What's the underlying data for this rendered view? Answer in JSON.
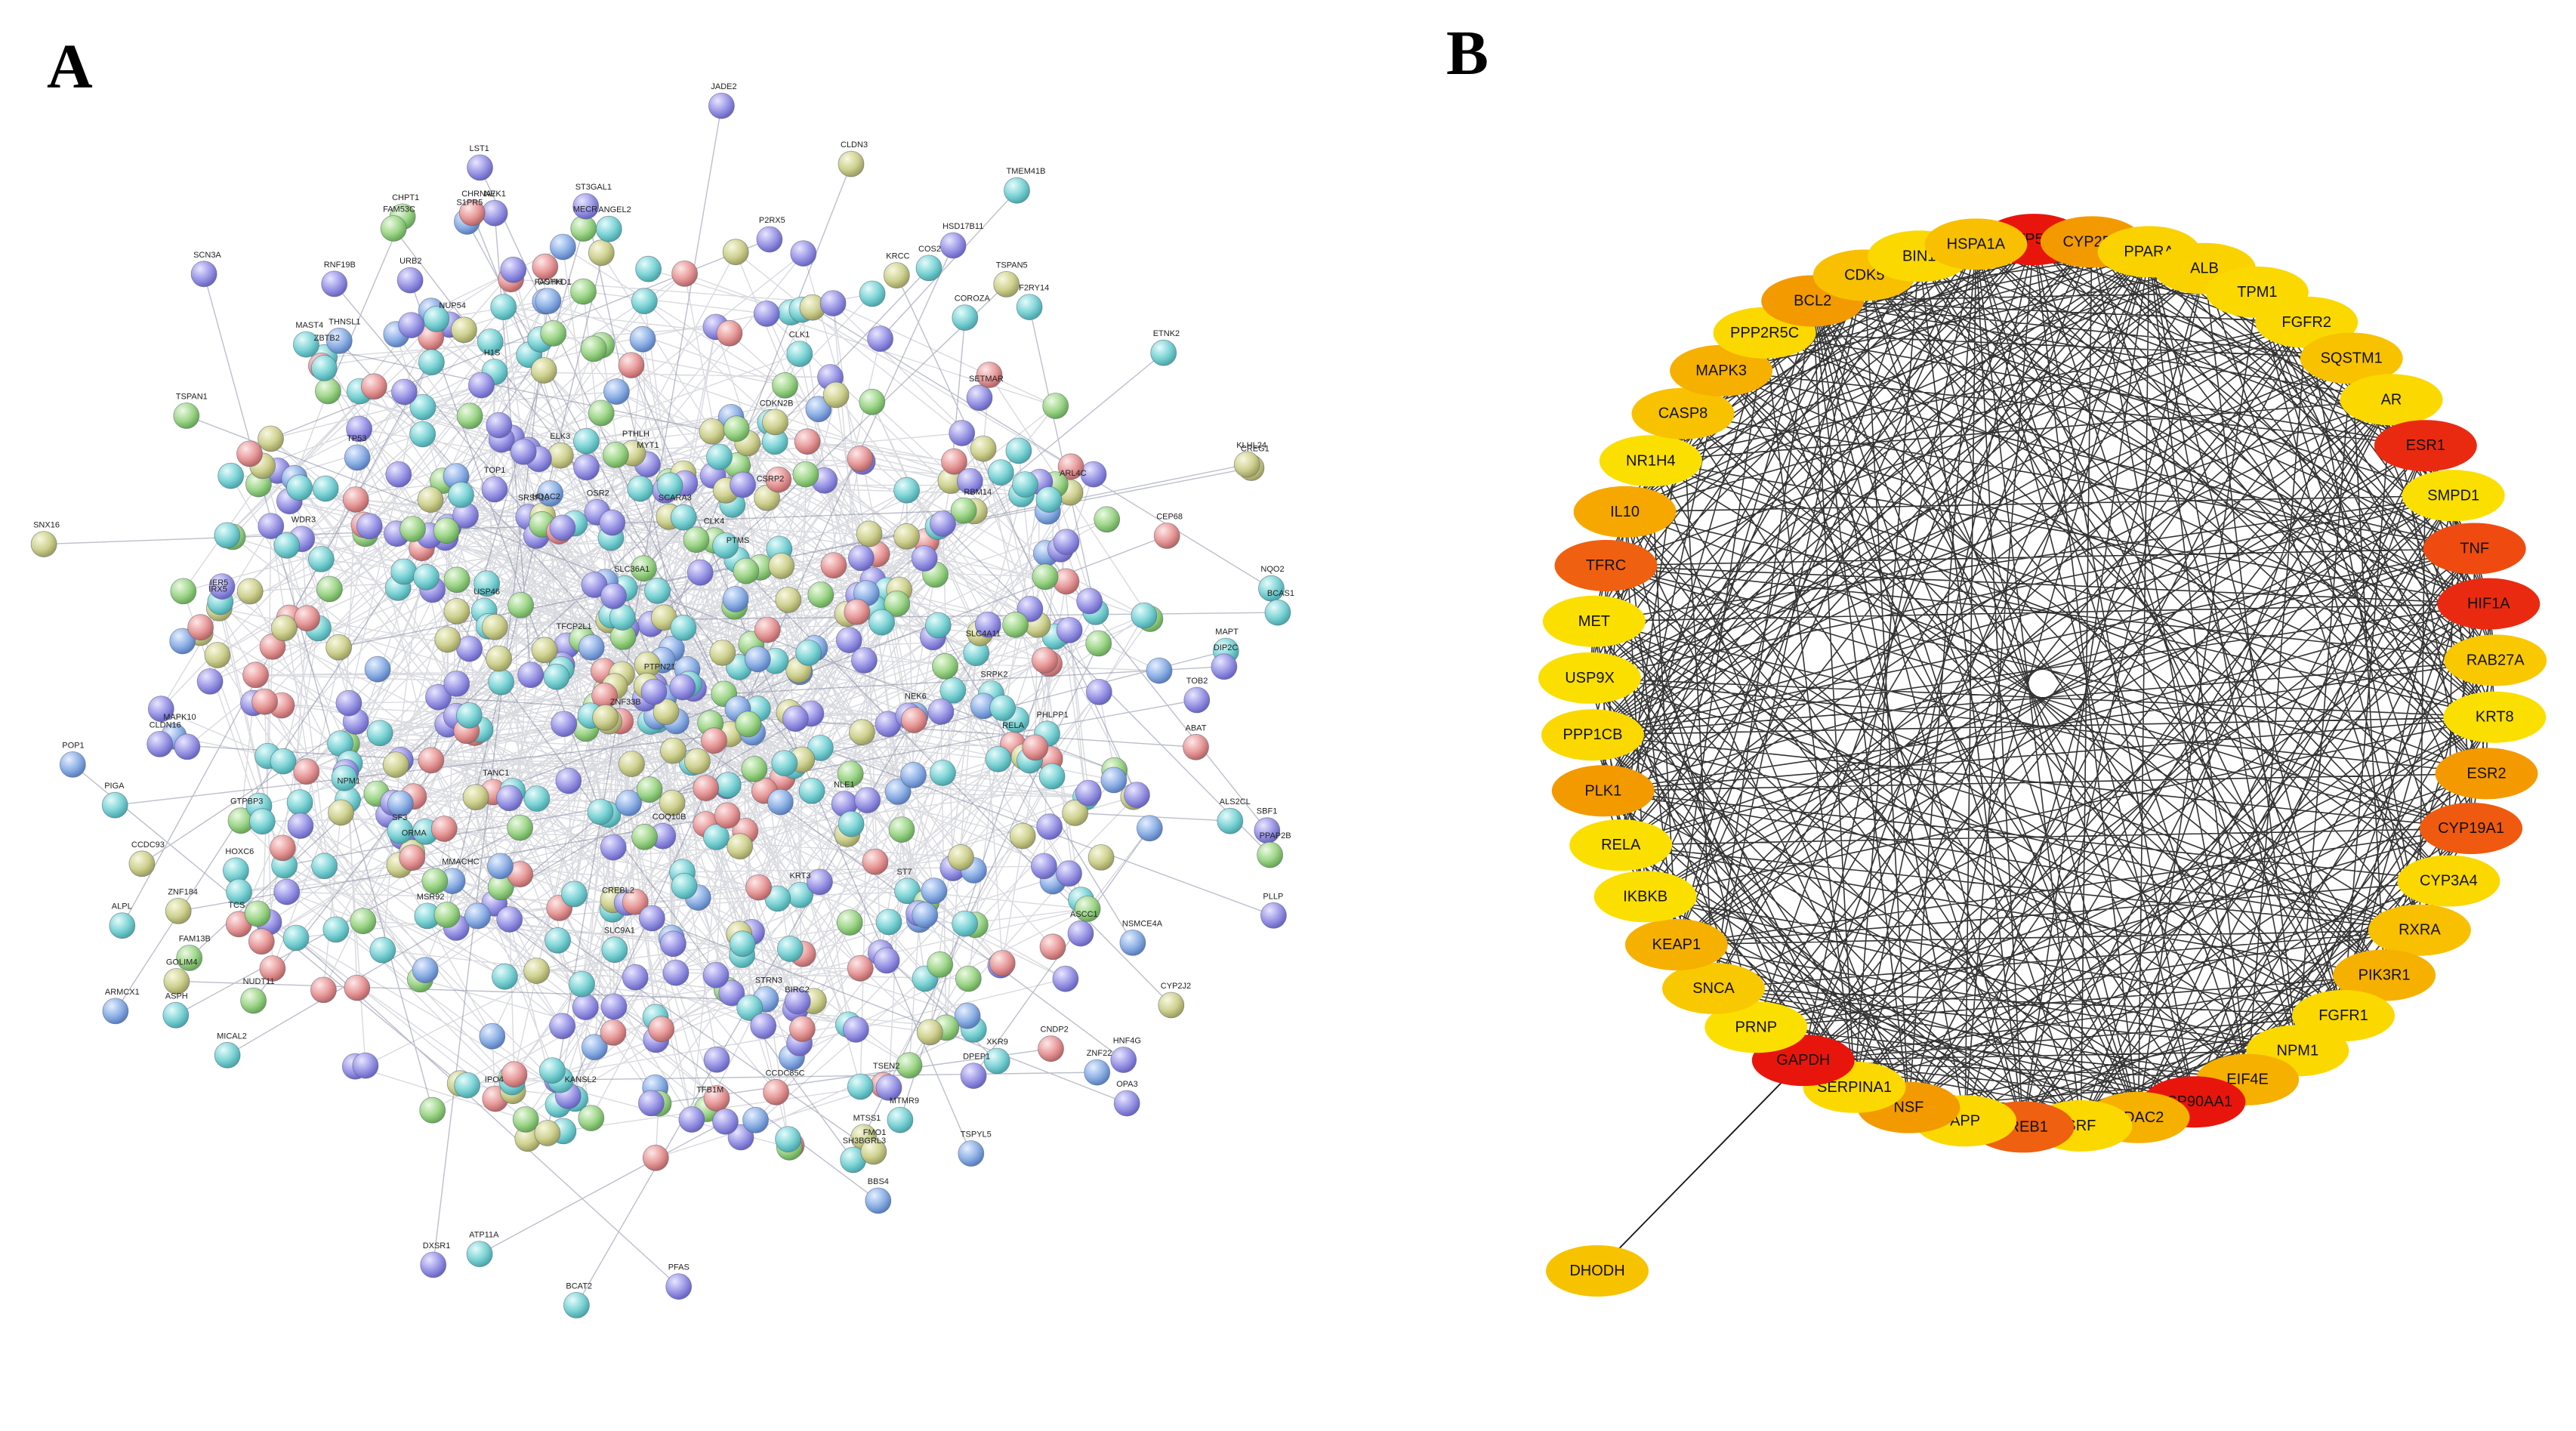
{
  "panels": {
    "a": {
      "label": "A"
    },
    "b": {
      "label": "B"
    }
  },
  "panel_a": {
    "visible_gene_labels": [
      "MTMR9",
      "SBF1",
      "COS2",
      "ETNK2",
      "PPAP2B",
      "DPEP1",
      "THNSL1",
      "RNF19B",
      "PLLP",
      "ALS2CL",
      "MTSS1",
      "CREG1",
      "CHPT1",
      "GOLIM4",
      "ALPL",
      "ABAT",
      "PIGA",
      "CNDP2",
      "MICAL2",
      "BBS4",
      "MAST4",
      "COROZA",
      "TMEM41B",
      "PFAS",
      "ATP11A",
      "XKR9",
      "JADE2",
      "SNX16",
      "HSD17B11",
      "SH3BGRL3",
      "KLHL24",
      "MECR",
      "MAPT",
      "BCAT2",
      "NQO2",
      "BCAS1",
      "NEK1",
      "DXSR1",
      "ZNF22",
      "TSPYL5",
      "CCDC93",
      "URB2",
      "S1PR5",
      "TSPAN1",
      "CYP2J2",
      "ASPH",
      "NUDT11",
      "FAM13B",
      "SCN3A",
      "FMO1",
      "FAM53C",
      "DIP2C",
      "OPA3",
      "NSMCE4A",
      "CEP68",
      "ARMCX1",
      "ANGEL2",
      "KRCC",
      "HNF4G",
      "CHRNA7",
      "ZNF184",
      "TOB2",
      "CLDN3",
      "F2RY14",
      "CLDN16",
      "ST3GAL1",
      "P2RX5",
      "LST1",
      "TSPAN5",
      "POP1",
      "SRSF10",
      "ZBTB2",
      "H1S",
      "TSEN2",
      "FASTKD1",
      "MYT1",
      "CLK4",
      "USP46",
      "CCDC85C",
      "SETMAR",
      "ST7",
      "PTHLH",
      "SLC9A1",
      "ARL4C",
      "SF3",
      "PTMS",
      "KRT3",
      "MSR92",
      "SLC4A11",
      "SCARA3",
      "HOXC6",
      "CSRP2",
      "IRX5",
      "SLC36A1",
      "TFCP2L1",
      "ELK3",
      "OSR2",
      "MMACHC",
      "TCS",
      "ZNF33B",
      "COQ10B",
      "PTPN21",
      "CREBL2",
      "TANC1",
      "CDKN2B",
      "IER5",
      "TP53",
      "RELA",
      "NPM1",
      "HDAC2",
      "MAPK10",
      "STRN3",
      "RBM14",
      "PHLPP1",
      "TOP1",
      "CLK1",
      "KANSL2",
      "SRPK2",
      "BIRC2",
      "NUP54",
      "WDR3",
      "ASCC1",
      "NLE1",
      "GTPBP3",
      "IPO4",
      "TFB1M",
      "ORMA",
      "NEK6",
      "DOHH"
    ]
  },
  "panel_b": {
    "outlier_node": {
      "name": "DHODH",
      "color": "#f7c200"
    },
    "nodes": [
      {
        "name": "TP53",
        "color": "#e8150c"
      },
      {
        "name": "CYP2E1",
        "color": "#f39a00"
      },
      {
        "name": "PPARA",
        "color": "#fad200"
      },
      {
        "name": "ALB",
        "color": "#fad200"
      },
      {
        "name": "TPM1",
        "color": "#fbd800"
      },
      {
        "name": "FGFR2",
        "color": "#fbd800"
      },
      {
        "name": "SQSTM1",
        "color": "#f8c200"
      },
      {
        "name": "AR",
        "color": "#fbd800"
      },
      {
        "name": "ESR1",
        "color": "#ea2a10"
      },
      {
        "name": "SMPD1",
        "color": "#fbdf00"
      },
      {
        "name": "TNF",
        "color": "#ef4b10"
      },
      {
        "name": "HIF1A",
        "color": "#ea2a10"
      },
      {
        "name": "RAB27A",
        "color": "#f9c800"
      },
      {
        "name": "KRT8",
        "color": "#fbdf00"
      },
      {
        "name": "ESR2",
        "color": "#f49a00"
      },
      {
        "name": "CYP19A1",
        "color": "#ef5a10"
      },
      {
        "name": "CYP3A4",
        "color": "#fbd800"
      },
      {
        "name": "RXRA",
        "color": "#f8c000"
      },
      {
        "name": "PIK3R1",
        "color": "#f6b000"
      },
      {
        "name": "FGFR1",
        "color": "#fbd800"
      },
      {
        "name": "NPM1",
        "color": "#fbd800"
      },
      {
        "name": "EIF4E",
        "color": "#f6b000"
      },
      {
        "name": "HSP90AA1",
        "color": "#e8150c"
      },
      {
        "name": "HDAC2",
        "color": "#f6b000"
      },
      {
        "name": "SRF",
        "color": "#fbd800"
      },
      {
        "name": "CREB1",
        "color": "#ef6010"
      },
      {
        "name": "APP",
        "color": "#fbd800"
      },
      {
        "name": "NSF",
        "color": "#f39a00"
      },
      {
        "name": "SERPINA1",
        "color": "#fbd800"
      },
      {
        "name": "GAPDH",
        "color": "#e8150c"
      },
      {
        "name": "PRNP",
        "color": "#fbdf00"
      },
      {
        "name": "SNCA",
        "color": "#f8c800"
      },
      {
        "name": "KEAP1",
        "color": "#f6b000"
      },
      {
        "name": "IKBKB",
        "color": "#fbdf00"
      },
      {
        "name": "RELA",
        "color": "#fbdf00"
      },
      {
        "name": "PLK1",
        "color": "#f39a00"
      },
      {
        "name": "PPP1CB",
        "color": "#fbd800"
      },
      {
        "name": "USP9X",
        "color": "#fbdf00"
      },
      {
        "name": "MET",
        "color": "#fbdf00"
      },
      {
        "name": "TFRC",
        "color": "#ef6010"
      },
      {
        "name": "IL10",
        "color": "#f6a800"
      },
      {
        "name": "NR1H4",
        "color": "#fbdf00"
      },
      {
        "name": "CASP8",
        "color": "#f8c200"
      },
      {
        "name": "MAPK3",
        "color": "#f6b000"
      },
      {
        "name": "PPP2R5C",
        "color": "#fbd800"
      },
      {
        "name": "BCL2",
        "color": "#f39a00"
      },
      {
        "name": "CDK5",
        "color": "#f8c000"
      },
      {
        "name": "BIN1",
        "color": "#fbd800"
      },
      {
        "name": "HSPA1A",
        "color": "#f8c000"
      }
    ]
  }
}
